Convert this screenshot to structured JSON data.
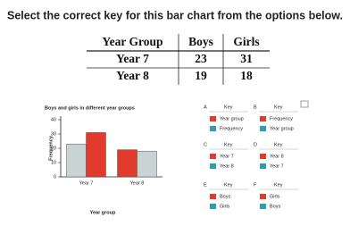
{
  "question": "Select the correct key for this bar chart from the options below.",
  "table": {
    "header": [
      "Year Group",
      "Boys",
      "Girls"
    ],
    "rows": [
      [
        "Year 7",
        23,
        31
      ],
      [
        "Year 8",
        19,
        18
      ]
    ]
  },
  "chart_data": {
    "type": "bar",
    "title": "Boys and girls in different year groups",
    "x_label": "Year group",
    "y_label": "Frequency",
    "categories": [
      "Year 7",
      "Year 8"
    ],
    "series": [
      {
        "values": [
          23,
          19
        ],
        "colors": [
          "#c9d3d3",
          "#e23b2e"
        ]
      },
      {
        "values": [
          31,
          18
        ],
        "colors": [
          "#e23b2e",
          "#c9d3d3"
        ]
      }
    ],
    "ylim": [
      0,
      40
    ],
    "yticks": [
      0,
      10,
      20,
      30,
      40
    ]
  },
  "options": [
    {
      "letter": "A",
      "key_title": "Key",
      "items": [
        {
          "label": "Year group",
          "color": "#e23b2e"
        },
        {
          "label": "Frequency",
          "color": "#2f9fb0"
        }
      ]
    },
    {
      "letter": "B",
      "key_title": "Key",
      "items": [
        {
          "label": "Frequency",
          "color": "#e23b2e"
        },
        {
          "label": "Year group",
          "color": "#2f9fb0"
        }
      ]
    },
    {
      "letter": "C",
      "key_title": "Key",
      "items": [
        {
          "label": "Year 7",
          "color": "#e23b2e"
        },
        {
          "label": "Year 8",
          "color": "#2f9fb0"
        }
      ]
    },
    {
      "letter": "D",
      "key_title": "Key",
      "items": [
        {
          "label": "Year 8",
          "color": "#e23b2e"
        },
        {
          "label": "Year 7",
          "color": "#2f9fb0"
        }
      ]
    },
    {
      "letter": "E",
      "key_title": "Key",
      "items": [
        {
          "label": "Boys",
          "color": "#e23b2e"
        },
        {
          "label": "Girls",
          "color": "#2f9fb0"
        }
      ]
    },
    {
      "letter": "F",
      "key_title": "Key",
      "items": [
        {
          "label": "Girls",
          "color": "#e23b2e"
        },
        {
          "label": "Boys",
          "color": "#2f9fb0"
        }
      ]
    }
  ]
}
